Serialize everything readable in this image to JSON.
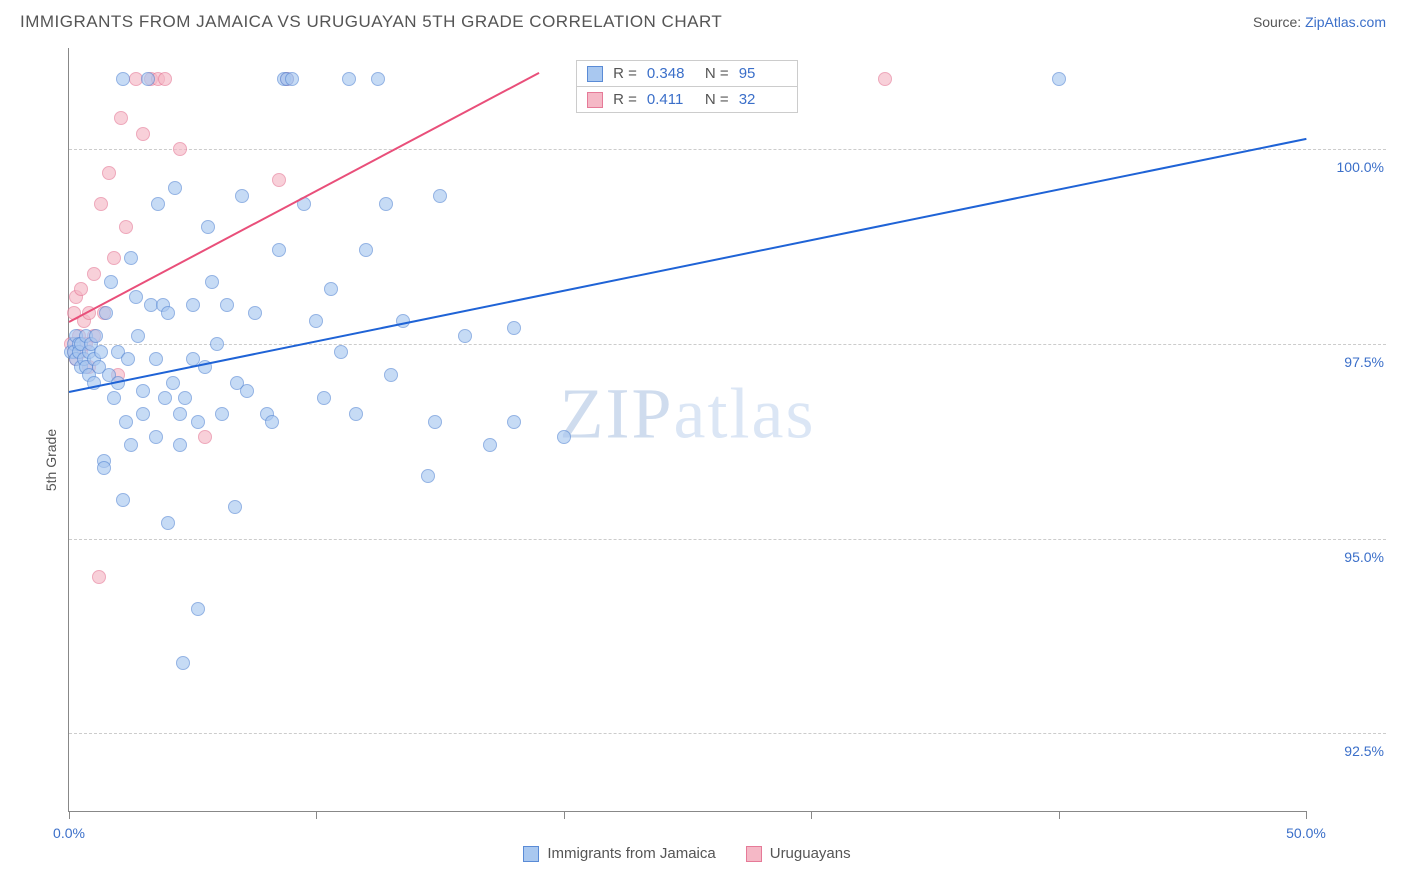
{
  "header": {
    "title": "IMMIGRANTS FROM JAMAICA VS URUGUAYAN 5TH GRADE CORRELATION CHART",
    "source_prefix": "Source: ",
    "source_link": "ZipAtlas.com"
  },
  "watermark": {
    "zip": "ZIP",
    "atlas": "atlas"
  },
  "chart": {
    "type": "scatter",
    "ylabel": "5th Grade",
    "background_color": "#ffffff",
    "grid_color": "#cccccc",
    "axis_color": "#888888",
    "xlim": [
      0.0,
      50.0
    ],
    "ylim": [
      91.5,
      101.3
    ],
    "xticks": [
      0.0,
      10.0,
      20.0,
      30.0,
      40.0,
      50.0
    ],
    "xtick_labels": [
      "0.0%",
      "",
      "",
      "",
      "",
      "50.0%"
    ],
    "yticks": [
      92.5,
      95.0,
      97.5,
      100.0
    ],
    "ytick_labels": [
      "92.5%",
      "95.0%",
      "97.5%",
      "100.0%"
    ],
    "marker_radius": 7,
    "series": [
      {
        "name": "Immigrants from Jamaica",
        "fill": "#a9c8f0",
        "stroke": "#5a8bd6",
        "line_color": "#1f63d6",
        "R": "0.348",
        "N": "95",
        "trend": {
          "x1": 0.0,
          "y1": 96.9,
          "x2": 50.0,
          "y2": 100.15
        },
        "points": [
          [
            0.1,
            97.4
          ],
          [
            0.2,
            97.5
          ],
          [
            0.2,
            97.4
          ],
          [
            0.3,
            97.3
          ],
          [
            0.3,
            97.6
          ],
          [
            0.4,
            97.5
          ],
          [
            0.4,
            97.4
          ],
          [
            0.5,
            97.2
          ],
          [
            0.5,
            97.5
          ],
          [
            0.6,
            97.3
          ],
          [
            0.7,
            97.6
          ],
          [
            0.7,
            97.2
          ],
          [
            0.8,
            97.4
          ],
          [
            0.8,
            97.1
          ],
          [
            0.9,
            97.5
          ],
          [
            1.0,
            97.3
          ],
          [
            1.0,
            97.0
          ],
          [
            1.1,
            97.6
          ],
          [
            1.2,
            97.2
          ],
          [
            1.3,
            97.4
          ],
          [
            1.4,
            96.0
          ],
          [
            1.4,
            95.9
          ],
          [
            1.5,
            97.9
          ],
          [
            1.6,
            97.1
          ],
          [
            1.7,
            98.3
          ],
          [
            1.8,
            96.8
          ],
          [
            2.0,
            97.0
          ],
          [
            2.0,
            97.4
          ],
          [
            2.2,
            95.5
          ],
          [
            2.2,
            100.9
          ],
          [
            2.3,
            96.5
          ],
          [
            2.4,
            97.3
          ],
          [
            2.5,
            98.6
          ],
          [
            2.5,
            96.2
          ],
          [
            2.7,
            98.1
          ],
          [
            2.8,
            97.6
          ],
          [
            3.0,
            96.6
          ],
          [
            3.0,
            96.9
          ],
          [
            3.2,
            100.9
          ],
          [
            3.3,
            98.0
          ],
          [
            3.5,
            97.3
          ],
          [
            3.5,
            96.3
          ],
          [
            3.6,
            99.3
          ],
          [
            3.8,
            98.0
          ],
          [
            3.9,
            96.8
          ],
          [
            4.0,
            97.9
          ],
          [
            4.0,
            95.2
          ],
          [
            4.2,
            97.0
          ],
          [
            4.3,
            99.5
          ],
          [
            4.5,
            96.6
          ],
          [
            4.5,
            96.2
          ],
          [
            4.6,
            93.4
          ],
          [
            4.7,
            96.8
          ],
          [
            5.0,
            98.0
          ],
          [
            5.0,
            97.3
          ],
          [
            5.2,
            94.1
          ],
          [
            5.2,
            96.5
          ],
          [
            5.5,
            97.2
          ],
          [
            5.6,
            99.0
          ],
          [
            5.8,
            98.3
          ],
          [
            6.0,
            97.5
          ],
          [
            6.2,
            96.6
          ],
          [
            6.4,
            98.0
          ],
          [
            6.7,
            95.4
          ],
          [
            6.8,
            97.0
          ],
          [
            7.0,
            99.4
          ],
          [
            7.2,
            96.9
          ],
          [
            7.5,
            97.9
          ],
          [
            8.0,
            96.6
          ],
          [
            8.2,
            96.5
          ],
          [
            8.5,
            98.7
          ],
          [
            8.7,
            100.9
          ],
          [
            8.8,
            100.9
          ],
          [
            9.0,
            100.9
          ],
          [
            9.5,
            99.3
          ],
          [
            10.0,
            97.8
          ],
          [
            10.3,
            96.8
          ],
          [
            10.6,
            98.2
          ],
          [
            11.0,
            97.4
          ],
          [
            11.3,
            100.9
          ],
          [
            11.6,
            96.6
          ],
          [
            12.0,
            98.7
          ],
          [
            12.5,
            100.9
          ],
          [
            12.8,
            99.3
          ],
          [
            13.0,
            97.1
          ],
          [
            13.5,
            97.8
          ],
          [
            14.5,
            95.8
          ],
          [
            14.8,
            96.5
          ],
          [
            15.0,
            99.4
          ],
          [
            16.0,
            97.6
          ],
          [
            17.0,
            96.2
          ],
          [
            18.0,
            96.5
          ],
          [
            18.0,
            97.7
          ],
          [
            20.0,
            96.3
          ],
          [
            40.0,
            100.9
          ]
        ]
      },
      {
        "name": "Uruguayans",
        "fill": "#f5b8c6",
        "stroke": "#e67a98",
        "line_color": "#e94f7a",
        "R": "0.411",
        "N": "32",
        "trend": {
          "x1": 0.0,
          "y1": 97.8,
          "x2": 19.0,
          "y2": 101.0
        },
        "points": [
          [
            0.1,
            97.5
          ],
          [
            0.2,
            97.9
          ],
          [
            0.2,
            97.4
          ],
          [
            0.3,
            97.3
          ],
          [
            0.3,
            98.1
          ],
          [
            0.4,
            97.6
          ],
          [
            0.5,
            98.2
          ],
          [
            0.5,
            97.4
          ],
          [
            0.6,
            97.8
          ],
          [
            0.7,
            97.5
          ],
          [
            0.8,
            97.9
          ],
          [
            0.8,
            97.2
          ],
          [
            1.0,
            98.4
          ],
          [
            1.0,
            97.6
          ],
          [
            1.2,
            94.5
          ],
          [
            1.3,
            99.3
          ],
          [
            1.4,
            97.9
          ],
          [
            1.6,
            99.7
          ],
          [
            1.8,
            98.6
          ],
          [
            2.0,
            97.1
          ],
          [
            2.1,
            100.4
          ],
          [
            2.3,
            99.0
          ],
          [
            2.7,
            100.9
          ],
          [
            3.0,
            100.2
          ],
          [
            3.3,
            100.9
          ],
          [
            3.6,
            100.9
          ],
          [
            3.9,
            100.9
          ],
          [
            4.5,
            100.0
          ],
          [
            5.5,
            96.3
          ],
          [
            8.5,
            99.6
          ],
          [
            8.8,
            100.9
          ],
          [
            33.0,
            100.9
          ]
        ]
      }
    ]
  },
  "legend": {
    "items": [
      {
        "label": "Immigrants from Jamaica",
        "fill": "#a9c8f0",
        "stroke": "#5a8bd6"
      },
      {
        "label": "Uruguayans",
        "fill": "#f5b8c6",
        "stroke": "#e67a98"
      }
    ]
  },
  "stats_box": {
    "r_label": "R =",
    "n_label": "N ="
  }
}
